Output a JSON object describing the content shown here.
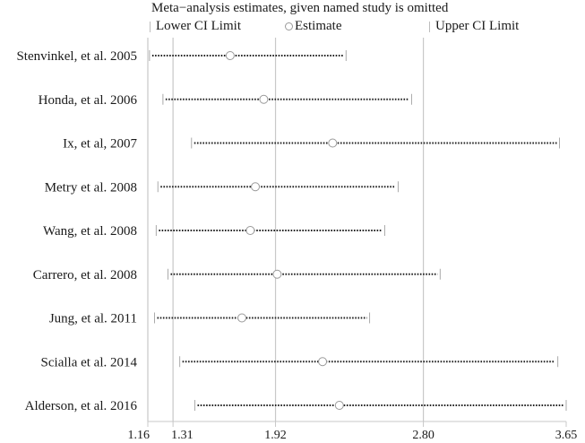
{
  "chart_data": {
    "type": "forest",
    "title": "Meta−analysis estimates, given named study is omitted",
    "legend": [
      {
        "label": "Lower CI Limit",
        "marker": "tick"
      },
      {
        "label": "Estimate",
        "marker": "circle"
      },
      {
        "label": "Upper CI Limit",
        "marker": "tick"
      }
    ],
    "xlim": [
      1.16,
      3.65
    ],
    "x_ticks": [
      1.16,
      1.31,
      1.92,
      2.8,
      3.65
    ],
    "x_tick_labels": [
      "1.16",
      "1.31",
      "1.92",
      "2.80",
      "3.65"
    ],
    "reference_lines": [
      1.16,
      1.31,
      1.92,
      2.8
    ],
    "xlabel": "",
    "ylabel": "",
    "grid": false,
    "studies": [
      {
        "label": "Stenvinkel, et al. 2005",
        "lower": 1.17,
        "estimate": 1.65,
        "upper": 2.34
      },
      {
        "label": "Honda, et al. 2006",
        "lower": 1.25,
        "estimate": 1.85,
        "upper": 2.73
      },
      {
        "label": "Ix, et al, 2007",
        "lower": 1.42,
        "estimate": 2.26,
        "upper": 3.61
      },
      {
        "label": "Metry et al. 2008",
        "lower": 1.22,
        "estimate": 1.8,
        "upper": 2.65
      },
      {
        "label": "Wang, et al. 2008",
        "lower": 1.21,
        "estimate": 1.77,
        "upper": 2.57
      },
      {
        "label": "Carrero, et al. 2008",
        "lower": 1.28,
        "estimate": 1.93,
        "upper": 2.9
      },
      {
        "label": "Jung, et al. 2011",
        "lower": 1.2,
        "estimate": 1.72,
        "upper": 2.48
      },
      {
        "label": "Scialla et al. 2014",
        "lower": 1.35,
        "estimate": 2.2,
        "upper": 3.6
      },
      {
        "label": "Alderson, et al. 2016",
        "lower": 1.44,
        "estimate": 2.3,
        "upper": 3.65
      }
    ]
  }
}
